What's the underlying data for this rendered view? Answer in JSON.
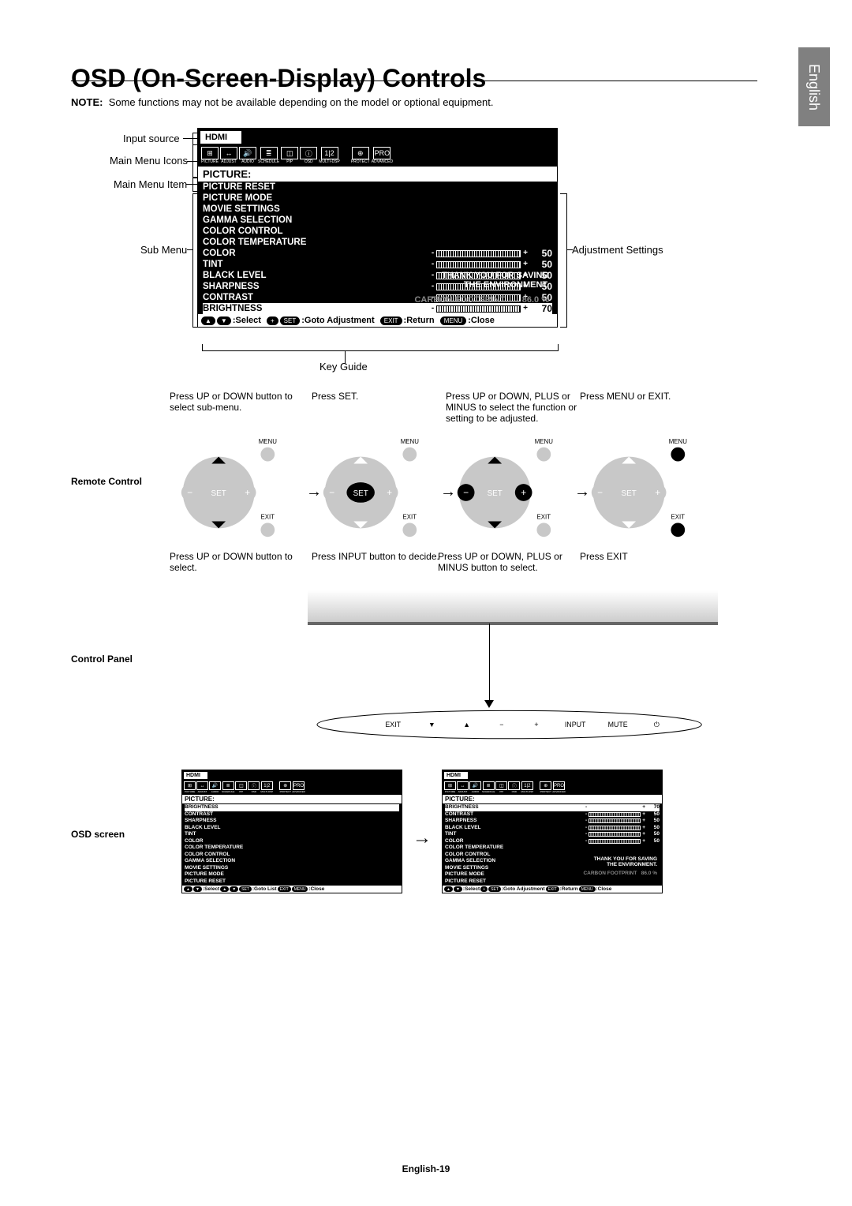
{
  "title": "OSD (On-Screen-Display) Controls",
  "note_label": "NOTE:",
  "note_text": "Some functions may not be available depending on the model or optional equipment.",
  "side_lang": "English",
  "page_no": "English-19",
  "osd": {
    "input": "HDMI",
    "icons": [
      "PICTURE",
      "ADJUST",
      "AUDIO",
      "SCHEDULE",
      "PIP",
      "OSD",
      "MULTI-DSP",
      "",
      "PROTECT",
      "ADVANCED"
    ],
    "icon_glyphs": [
      "⊞",
      "↔",
      "🔊",
      "≣",
      "◫",
      "ⓘ",
      "1|2",
      "",
      "⊕",
      "PRO"
    ],
    "menu_title": "PICTURE:",
    "items": [
      {
        "label": "BRIGHTNESS",
        "val": "70",
        "hl": true
      },
      {
        "label": "CONTRAST",
        "val": "50"
      },
      {
        "label": "SHARPNESS",
        "val": "50"
      },
      {
        "label": "BLACK LEVEL",
        "val": "50"
      },
      {
        "label": "TINT",
        "val": "50"
      },
      {
        "label": "COLOR",
        "val": "50"
      },
      {
        "label": "COLOR TEMPERATURE"
      },
      {
        "label": "COLOR CONTROL"
      },
      {
        "label": "GAMMA SELECTION"
      },
      {
        "label": "MOVIE SETTINGS"
      },
      {
        "label": "PICTURE MODE"
      },
      {
        "label": "PICTURE RESET"
      }
    ],
    "env1": "THANK YOU FOR SAVING",
    "env2": "THE ENVIRONMENT.",
    "carbon_lbl": "CARBON FOOTPRINT",
    "carbon_val": "86.0 %",
    "kg_select": ":Select",
    "kg_goto_adj": ":Goto Adjustment",
    "kg_goto_list": ":Goto List",
    "kg_return": ":Return",
    "kg_close": ":Close"
  },
  "callouts": {
    "input_source": "Input source",
    "main_icons": "Main Menu Icons",
    "main_item": "Main Menu Item",
    "sub_menu": "Sub Menu",
    "adj_settings": "Adjustment Settings",
    "key_guide": "Key Guide"
  },
  "remote": {
    "label": "Remote Control",
    "set": "SET",
    "menu": "MENU",
    "exit": "EXIT",
    "steps": [
      "Press UP or DOWN button to select sub-menu.",
      "Press SET.",
      "Press UP or DOWN, PLUS or MINUS to select the function or setting to be adjusted.",
      "Press MENU or EXIT."
    ]
  },
  "ctrlpanel": {
    "label": "Control Panel",
    "steps": [
      "Press UP or DOWN button to select.",
      "Press INPUT button to decide.",
      "Press UP or DOWN, PLUS or MINUS button to select.",
      "Press EXIT"
    ],
    "buttons": [
      "EXIT",
      "▼",
      "▲",
      "−",
      "+",
      "INPUT",
      "MUTE",
      "⏻"
    ]
  },
  "osdscreen": {
    "label": "OSD screen"
  }
}
